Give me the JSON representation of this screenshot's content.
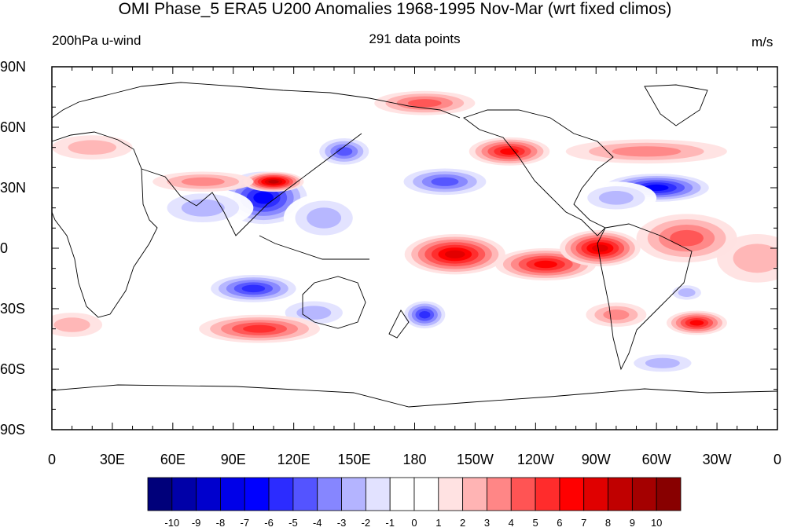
{
  "header": {
    "title": "OMI Phase_5 ERA5 U200 Anomalies 1968-1995 Nov-Mar (wrt fixed climos)",
    "left_label": "200hPa u-wind",
    "center_label": "291 data points",
    "right_label": "m/s"
  },
  "axes": {
    "lat_labels": [
      "90N",
      "60N",
      "30N",
      "0",
      "30S",
      "60S",
      "90S"
    ],
    "lon_labels": [
      "0",
      "30E",
      "60E",
      "90E",
      "120E",
      "150E",
      "180",
      "150W",
      "120W",
      "90W",
      "60W",
      "30W",
      "0"
    ]
  },
  "colorbar": {
    "colors": [
      "#00007a",
      "#0000a8",
      "#0000cd",
      "#0000e8",
      "#0000ff",
      "#2c2cff",
      "#5454ff",
      "#8686ff",
      "#b4b4ff",
      "#e2e2ff",
      "#ffffff",
      "#ffffff",
      "#ffe2e2",
      "#ffb4b4",
      "#ff8686",
      "#ff5454",
      "#ff2c2c",
      "#ff0000",
      "#e00000",
      "#c00000",
      "#a40000",
      "#880000"
    ],
    "labels": [
      "-10",
      "-9",
      "-8",
      "-7",
      "-6",
      "-5",
      "-4",
      "-3",
      "-2",
      "-1",
      "0",
      "1",
      "2",
      "3",
      "4",
      "5",
      "6",
      "7",
      "8",
      "9",
      "10"
    ]
  },
  "anomalies": [
    {
      "lon": 105,
      "lat": 25,
      "value": -7,
      "rx": 25,
      "ry": 15
    },
    {
      "lon": 75,
      "lat": 20,
      "value": -3,
      "rx": 25,
      "ry": 10
    },
    {
      "lon": 135,
      "lat": 15,
      "value": -3,
      "rx": 20,
      "ry": 12
    },
    {
      "lon": 110,
      "lat": 33,
      "value": 8,
      "rx": 15,
      "ry": 5
    },
    {
      "lon": 75,
      "lat": 33,
      "value": 3,
      "rx": 25,
      "ry": 5
    },
    {
      "lon": 145,
      "lat": 48,
      "value": -5,
      "rx": 15,
      "ry": 8
    },
    {
      "lon": 185,
      "lat": 72,
      "value": 4,
      "rx": 25,
      "ry": 6
    },
    {
      "lon": 195,
      "lat": 33,
      "value": -5,
      "rx": 25,
      "ry": 8
    },
    {
      "lon": 227,
      "lat": 48,
      "value": 6,
      "rx": 20,
      "ry": 7
    },
    {
      "lon": 295,
      "lat": 48,
      "value": 3,
      "rx": 40,
      "ry": 6
    },
    {
      "lon": 300,
      "lat": 30,
      "value": -7,
      "rx": 30,
      "ry": 8
    },
    {
      "lon": 280,
      "lat": 25,
      "value": -3,
      "rx": 20,
      "ry": 8
    },
    {
      "lon": 200,
      "lat": -3,
      "value": 7,
      "rx": 25,
      "ry": 10
    },
    {
      "lon": 245,
      "lat": -8,
      "value": 6,
      "rx": 25,
      "ry": 8
    },
    {
      "lon": 272,
      "lat": 0,
      "value": 7,
      "rx": 20,
      "ry": 9
    },
    {
      "lon": 315,
      "lat": 5,
      "value": 4,
      "rx": 25,
      "ry": 12
    },
    {
      "lon": 350,
      "lat": -5,
      "value": 2,
      "rx": 20,
      "ry": 12
    },
    {
      "lon": 100,
      "lat": -20,
      "value": -6,
      "rx": 25,
      "ry": 8
    },
    {
      "lon": 130,
      "lat": -32,
      "value": -3,
      "rx": 20,
      "ry": 8
    },
    {
      "lon": 103,
      "lat": -40,
      "value": 5,
      "rx": 30,
      "ry": 7
    },
    {
      "lon": 185,
      "lat": -33,
      "value": -6,
      "rx": 12,
      "ry": 8
    },
    {
      "lon": 280,
      "lat": -33,
      "value": 3,
      "rx": 15,
      "ry": 6
    },
    {
      "lon": 320,
      "lat": -37,
      "value": 6,
      "rx": 15,
      "ry": 6
    },
    {
      "lon": 315,
      "lat": -22,
      "value": -3,
      "rx": 10,
      "ry": 5
    },
    {
      "lon": 303,
      "lat": -57,
      "value": -3,
      "rx": 20,
      "ry": 6
    },
    {
      "lon": 10,
      "lat": -38,
      "value": 2,
      "rx": 15,
      "ry": 6
    },
    {
      "lon": 20,
      "lat": 50,
      "value": 2,
      "rx": 20,
      "ry": 6
    }
  ]
}
